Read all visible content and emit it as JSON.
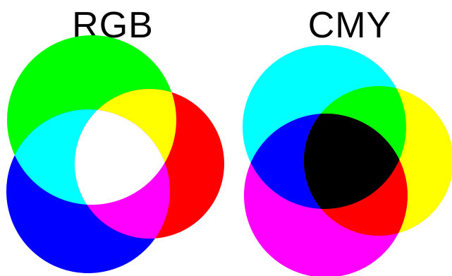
{
  "panels": {
    "rgb": {
      "title": "RGB",
      "model": "additive",
      "circles": [
        {
          "name": "green-circle",
          "color": "#00ff00"
        },
        {
          "name": "red-circle",
          "color": "#ff0000"
        },
        {
          "name": "blue-circle",
          "color": "#0000ff"
        }
      ],
      "overlaps": {
        "green-red": "#ffff00",
        "green-blue": "#00ffff",
        "red-blue": "#ff00ff",
        "all": "#ffffff"
      }
    },
    "cmy": {
      "title": "CMY",
      "model": "subtractive",
      "circles": [
        {
          "name": "cyan-circle",
          "color": "#00ffff"
        },
        {
          "name": "yellow-circle",
          "color": "#ffff00"
        },
        {
          "name": "magenta-circle",
          "color": "#ff00ff"
        }
      ],
      "overlaps": {
        "cyan-yellow": "#00ff00",
        "cyan-magenta": "#0000ff",
        "yellow-magenta": "#ff0000",
        "all": "#000000"
      }
    }
  }
}
